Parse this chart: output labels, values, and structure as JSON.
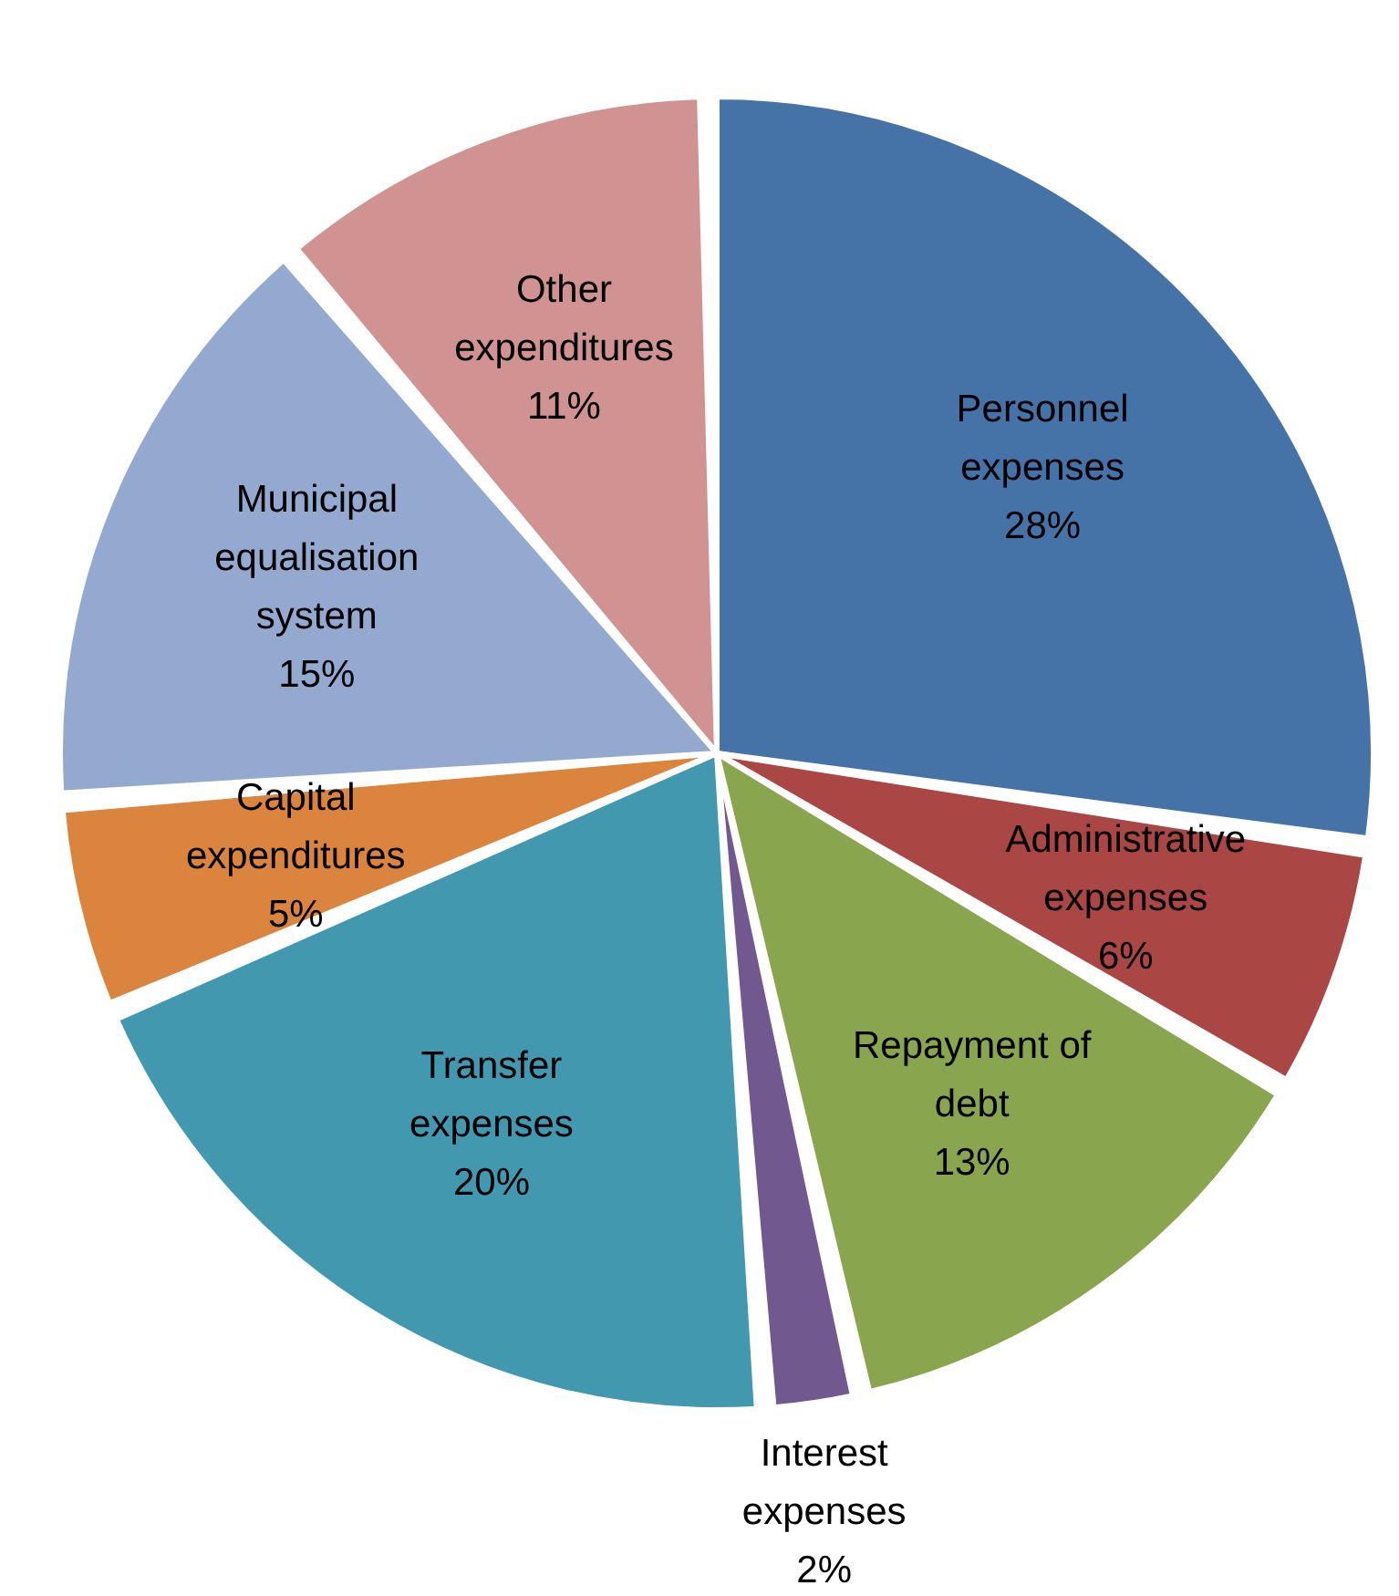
{
  "chart_data": {
    "type": "pie",
    "categories": [
      "Personnel expenses",
      "Administrative expenses",
      "Repayment of debt",
      "Interest expenses",
      "Transfer expenses",
      "Capital expenditures",
      "Municipal equalisation system",
      "Other expenditures"
    ],
    "values": [
      28,
      6,
      13,
      2,
      20,
      5,
      15,
      11
    ],
    "value_labels": [
      "28%",
      "6%",
      "13%",
      "2%",
      "20%",
      "5%",
      "15%",
      "11%"
    ],
    "colors": [
      "#4573a7",
      "#aa4643",
      "#89a54e",
      "#71588f",
      "#4198af",
      "#db843d",
      "#93a9cf",
      "#d19392"
    ]
  }
}
